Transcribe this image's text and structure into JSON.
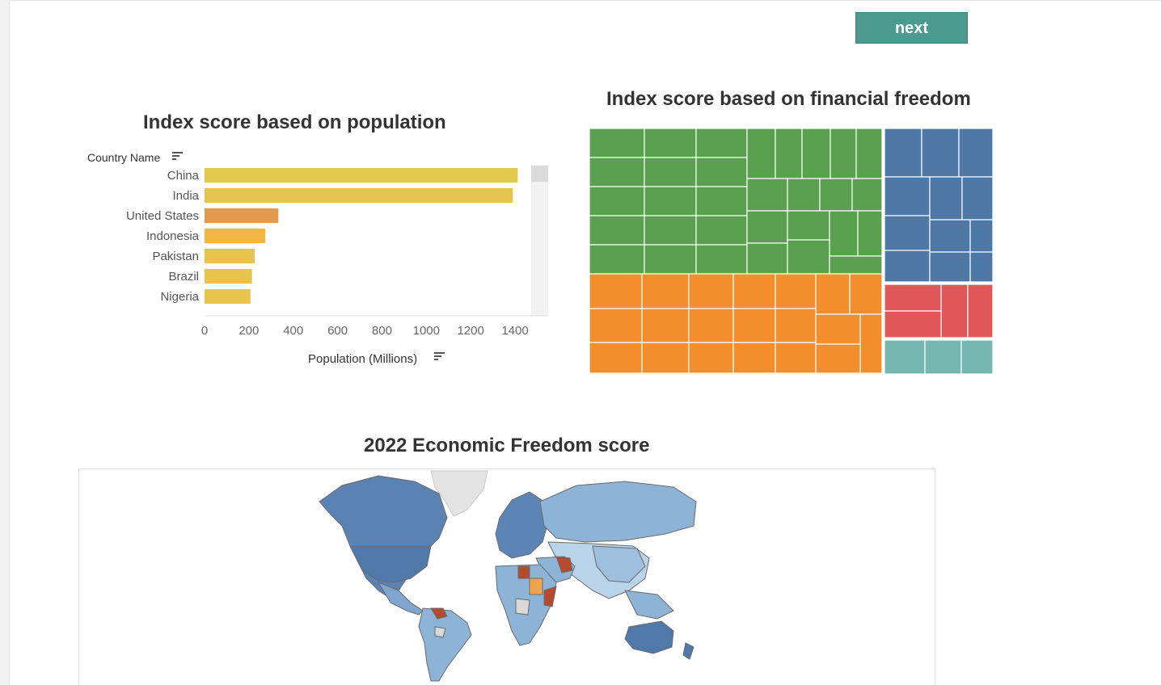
{
  "nav": {
    "next_label": "next"
  },
  "chart_data": [
    {
      "type": "bar",
      "title": "Index score based on population",
      "ylabel": "Country Name",
      "xlabel": "Population (Millions)",
      "categories": [
        "China",
        "India",
        "United States",
        "Indonesia",
        "Pakistan",
        "Brazil",
        "Nigeria"
      ],
      "values": [
        1412,
        1390,
        333,
        274,
        226,
        214,
        207
      ],
      "colors": [
        "#e3c94b",
        "#e6c350",
        "#e39a4e",
        "#f3b643",
        "#e8c44d",
        "#e8c44d",
        "#e8c44d"
      ],
      "xticks": [
        0,
        200,
        400,
        600,
        800,
        1000,
        1200,
        1400
      ],
      "xlim": [
        0,
        1500
      ],
      "grid": false
    },
    {
      "type": "treemap",
      "title": "Index score based on financial freedom",
      "groups": [
        {
          "color": "#59a14f"
        },
        {
          "color": "#f28e2b"
        },
        {
          "color": "#4e79a7"
        },
        {
          "color": "#e15759"
        },
        {
          "color": "#76b7b2"
        }
      ]
    },
    {
      "type": "map",
      "title": "2022 Economic Freedom score",
      "colors": {
        "high": "#4e79a7",
        "mid": "#8db3d6",
        "light": "#b9d3e8",
        "low": "#f0a34a",
        "repressed": "#b54a2f",
        "no_data": "#d9d9d9"
      }
    }
  ]
}
